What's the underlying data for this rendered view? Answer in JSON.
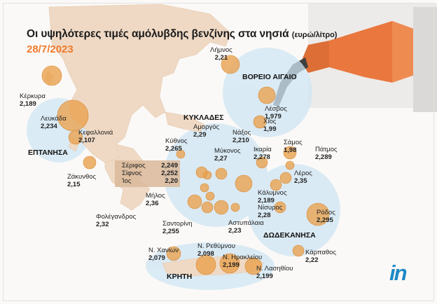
{
  "title": "Οι υψηλότερες τιμές αμόλυβδης βενζίνης στα νησιά",
  "title_unit": "(ευρώ/λίτρο)",
  "date": "28/7/2023",
  "regions": {
    "voreio_aigaio": "ΒΟΡΕΙΟ ΑΙΓΑΙΟ",
    "kyklades": "ΚΥΚΛΑΔΕΣ",
    "eptanisa": "ΕΠΤΑΝΗΣΑ",
    "dodekanisa": "ΔΩΔΕΚΑΝΗΣΑ",
    "kriti": "ΚΡΗΤΗ"
  },
  "logo": "in",
  "colors": {
    "accent": "#f07a2c",
    "bubble": "#e9a04c",
    "region_halo": "#cfe6f4",
    "logo": "#1d89c7",
    "land": "#efd9c4"
  },
  "chart_data": {
    "type": "bubble-map",
    "unit": "ευρώ/λίτρο",
    "points": [
      {
        "name": "Λήμνος",
        "value": "2,21"
      },
      {
        "name": "Λέσβος",
        "value": "1,979"
      },
      {
        "name": "Χίος",
        "value": "1,99"
      },
      {
        "name": "Σάμος",
        "value": "1,98"
      },
      {
        "name": "Ικαρία",
        "value": "2,278"
      },
      {
        "name": "Πάτμος",
        "value": "2,289"
      },
      {
        "name": "Λέρος",
        "value": "2,35"
      },
      {
        "name": "Κάλυμνος",
        "value": "2,189"
      },
      {
        "name": "Νίσυρος",
        "value": "2,28"
      },
      {
        "name": "Ρόδος",
        "value": "2,295"
      },
      {
        "name": "Κάρπαθος",
        "value": "2,22"
      },
      {
        "name": "Κέρκυρα",
        "value": "2,189"
      },
      {
        "name": "Λευκάδα",
        "value": "2,234"
      },
      {
        "name": "Κεφαλλονιά",
        "value": "2,107"
      },
      {
        "name": "Ζάκυνθος",
        "value": "2,15"
      },
      {
        "name": "Κύθνος",
        "value": "2,265"
      },
      {
        "name": "Αμοργός",
        "value": "2,29"
      },
      {
        "name": "Νάξος",
        "value": "2,210"
      },
      {
        "name": "Μύκονος",
        "value": "2,27"
      },
      {
        "name": "Σέριφος",
        "value": "2,249"
      },
      {
        "name": "Σίφνος",
        "value": "2,252"
      },
      {
        "name": "Ίος",
        "value": "2,20"
      },
      {
        "name": "Μήλος",
        "value": "2,36"
      },
      {
        "name": "Φολέγανδρος",
        "value": "2,32"
      },
      {
        "name": "Σαντορίνη",
        "value": "2,255"
      },
      {
        "name": "Αστυπάλαια",
        "value": "2,23"
      },
      {
        "name": "Ν. Χανίων",
        "value": "2,079"
      },
      {
        "name": "Ν. Ρεθύμνου",
        "value": "2,098"
      },
      {
        "name": "Ν. Ηρακλείου",
        "value": "2,199"
      },
      {
        "name": "Ν. Λασηθίου",
        "value": "2,199"
      }
    ]
  }
}
